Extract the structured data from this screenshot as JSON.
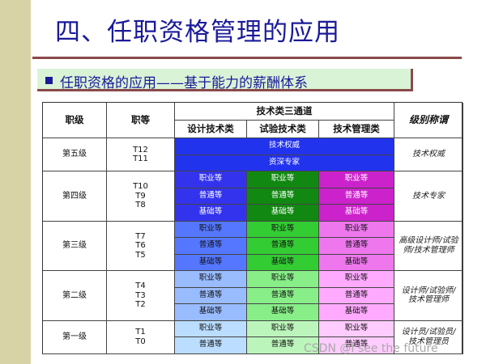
{
  "slide_title": "四、任职资格管理的应用",
  "subtitle": "任职资格的应用——基于能力的薪酬体系",
  "table": {
    "headers": {
      "rank": "职级",
      "grade": "职等",
      "channels": "技术类三通道",
      "design": "设计技术类",
      "test": "试验技术类",
      "mgmt": "技术管理类",
      "title": "级别称谓"
    },
    "levels": [
      {
        "rank": "第五级",
        "grades": "T12\nT11",
        "title": "技术权威",
        "rows": [
          "技术权威",
          "资深专家"
        ]
      },
      {
        "rank": "第四级",
        "grades": "T10\nT9\nT8",
        "title": "技术专家",
        "cells": [
          [
            "职业等",
            "职业等",
            "职业等"
          ],
          [
            "普通等",
            "普通等",
            "普通等"
          ],
          [
            "基础等",
            "基础等",
            "基础等"
          ]
        ]
      },
      {
        "rank": "第三级",
        "grades": "T7\nT6\nT5",
        "title": "高级设计师/试验\n师/技术管理师",
        "cells": [
          [
            "职业等",
            "职业等",
            "职业等"
          ],
          [
            "普通等",
            "普通等",
            "普通等"
          ],
          [
            "基础等",
            "基础等",
            "基础等"
          ]
        ]
      },
      {
        "rank": "第二级",
        "grades": "T4\nT3\nT2",
        "title": "设计师/试验师/\n技术管理师",
        "cells": [
          [
            "职业等",
            "职业等",
            "职业等"
          ],
          [
            "普通等",
            "普通等",
            "普通等"
          ],
          [
            "基础等",
            "基础等",
            "基础等"
          ]
        ]
      },
      {
        "rank": "第一级",
        "grades": "T1\nT0",
        "title": "设计员/试验员/\n技术管理员",
        "cells": [
          [
            "职业等",
            "职业等",
            "职业等"
          ],
          [
            "普通等",
            "普通等",
            "普通等"
          ]
        ]
      }
    ]
  },
  "colors": {
    "level5": "#2233ee",
    "level4": [
      "#3333ee",
      "#118811",
      "#cc22cc"
    ],
    "level3": [
      "#5577ff",
      "#33cc33",
      "#ee77ee"
    ],
    "level2": [
      "#99bbff",
      "#88ee88",
      "#ffaaff"
    ],
    "level1": [
      "#bbddff",
      "#bbf5bb",
      "#ffccff"
    ]
  },
  "watermark": "CSDN @I see the future"
}
